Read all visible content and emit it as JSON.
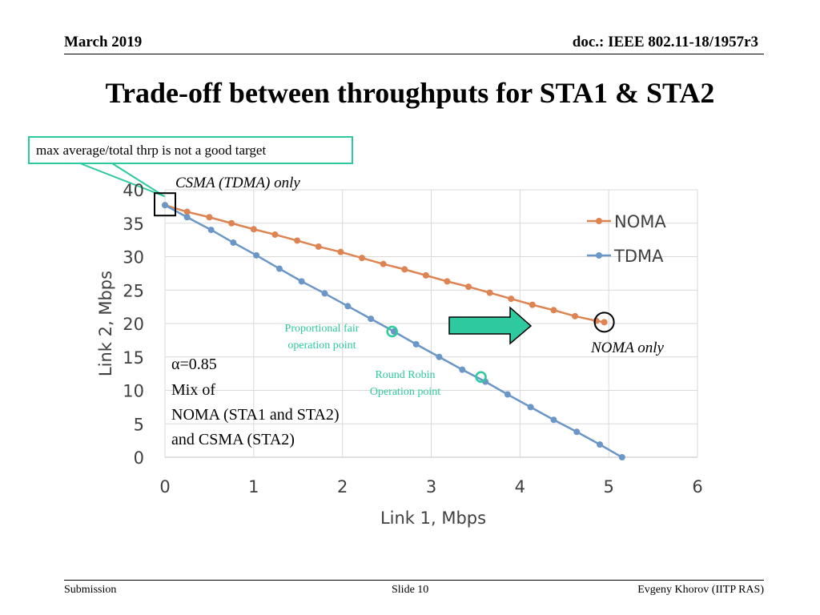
{
  "header": {
    "date": "March 2019",
    "doc": "doc.: IEEE 802.11-18/1957r3"
  },
  "slide_title": "Trade-off between throughputs for STA1 & STA2",
  "callout_text": "max average/total thrp is not a good target",
  "footer": {
    "left": "Submission",
    "center": "Slide 10",
    "right": "Evgeny Khorov (IITP RAS)"
  },
  "colors": {
    "noma": "#dd8452",
    "tdma": "#6a97c8",
    "accent": "#2ec99e",
    "grid": "#d9d9d9"
  },
  "chart_data": {
    "type": "line",
    "xlabel": "Link 1, Mbps",
    "ylabel": "Link 2,  Mbps",
    "xlim": [
      0,
      6
    ],
    "ylim": [
      0,
      40
    ],
    "xticks": [
      "0",
      "1",
      "2",
      "3",
      "4",
      "5",
      "6"
    ],
    "yticks": [
      "0",
      "5",
      "10",
      "15",
      "20",
      "25",
      "30",
      "35",
      "40"
    ],
    "grid": true,
    "legend": "top-right",
    "series": [
      {
        "name": "NOMA",
        "x": [
          0,
          0.25,
          0.5,
          0.75,
          1.0,
          1.24,
          1.49,
          1.73,
          1.98,
          2.22,
          2.46,
          2.7,
          2.94,
          3.18,
          3.42,
          3.66,
          3.9,
          4.14,
          4.38,
          4.62,
          4.86,
          4.95
        ],
        "y": [
          37.7,
          36.7,
          35.9,
          35.0,
          34.1,
          33.3,
          32.4,
          31.5,
          30.7,
          29.8,
          28.9,
          28.1,
          27.2,
          26.3,
          25.5,
          24.6,
          23.7,
          22.8,
          22.0,
          21.1,
          20.4,
          20.2
        ]
      },
      {
        "name": "TDMA",
        "x": [
          0,
          0.25,
          0.52,
          0.77,
          1.03,
          1.29,
          1.54,
          1.8,
          2.06,
          2.32,
          2.58,
          2.83,
          3.09,
          3.35,
          3.61,
          3.86,
          4.12,
          4.38,
          4.64,
          4.9,
          5.15
        ],
        "y": [
          37.7,
          35.9,
          34.0,
          32.1,
          30.2,
          28.2,
          26.3,
          24.5,
          22.6,
          20.7,
          18.8,
          16.9,
          15.0,
          13.1,
          11.3,
          9.4,
          7.5,
          5.6,
          3.8,
          1.9,
          0.0
        ]
      }
    ],
    "markers": [
      {
        "label": "Proportional fair\noperation point",
        "x": 2.56,
        "y": 18.8
      },
      {
        "label": "Round Robin\nOperation point",
        "x": 3.56,
        "y": 12.0
      }
    ],
    "annotations": {
      "csma": "CSMA (TDMA) only",
      "noma": "NOMA only",
      "alpha": "α=0.85",
      "mix_lines": [
        "Mix of",
        "NOMA (STA1 and STA2)",
        " and CSMA (STA2)"
      ]
    }
  }
}
